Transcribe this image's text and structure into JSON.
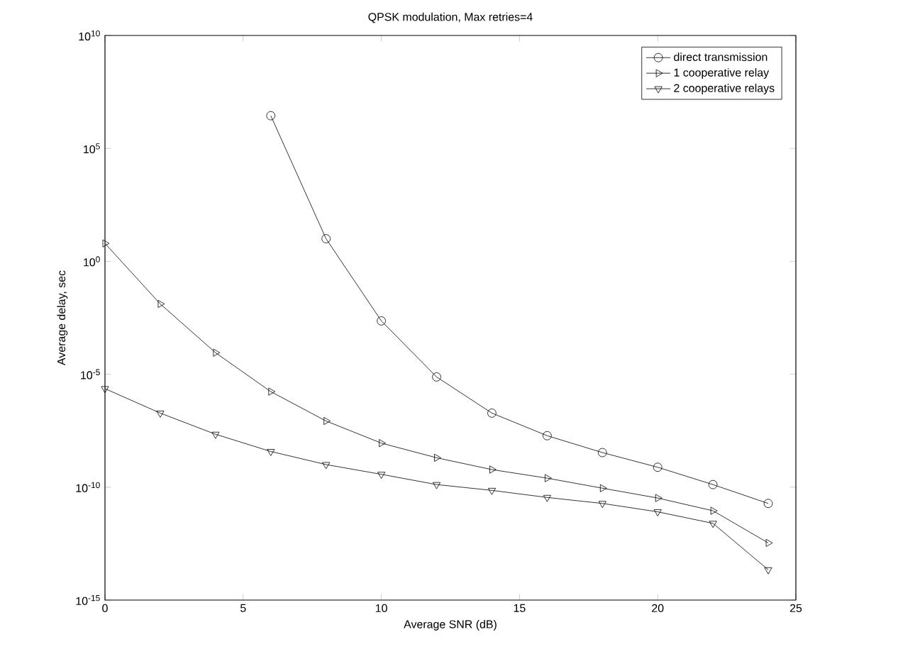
{
  "chart_data": {
    "type": "line",
    "title": "QPSK modulation, Max retries=4",
    "xlabel": "Average SNR (dB)",
    "ylabel": "Average delay, sec",
    "log": "y",
    "grid": false,
    "legend": "top right",
    "line_style": "solid",
    "x": [
      0,
      2,
      4,
      6,
      8,
      10,
      12,
      14,
      16,
      18,
      20,
      22,
      24
    ],
    "xlim": [
      0,
      25
    ],
    "xticks": [
      0,
      5,
      10,
      15,
      20,
      25
    ],
    "ylim": [
      1e-15,
      10000000000.0
    ],
    "yticks": [
      {
        "value": 1e-15,
        "label": "10$^{-15}$"
      },
      {
        "value": 1e-10,
        "label": "10$^{-10}$"
      },
      {
        "value": 1e-05,
        "label": "10$^{-5}$"
      },
      {
        "value": 1,
        "label": "10$^{0}$"
      },
      {
        "value": 100000.0,
        "label": "10$^{5}$"
      },
      {
        "value": 10000000000.0,
        "label": "10$^{10}$"
      }
    ],
    "series": [
      {
        "name": "direct transmission",
        "color": "#000000",
        "marker": "circle",
        "values": [
          null,
          null,
          null,
          2800000.0,
          10,
          0.0023,
          7.6e-06,
          1.9e-07,
          1.9e-08,
          3.4e-09,
          7.6e-10,
          1.3e-10,
          1.9e-11
        ]
      },
      {
        "name": "1 cooperative relay",
        "color": "#000000",
        "marker": "triangle-right",
        "values": [
          6.2,
          0.013,
          9e-05,
          1.7e-06,
          8.5e-08,
          8.9e-09,
          2e-09,
          6e-10,
          2.5e-10,
          9e-11,
          3.3e-11,
          9e-12,
          3.4e-13
        ]
      },
      {
        "name": "2 cooperative relays",
        "color": "#000000",
        "marker": "triangle-down",
        "values": [
          2.3e-06,
          1.9e-07,
          2.2e-08,
          3.8e-09,
          1e-09,
          3.7e-10,
          1.3e-10,
          7.2e-11,
          3.5e-11,
          1.9e-11,
          8.1e-12,
          2.5e-12,
          2.2e-14
        ]
      }
    ]
  }
}
